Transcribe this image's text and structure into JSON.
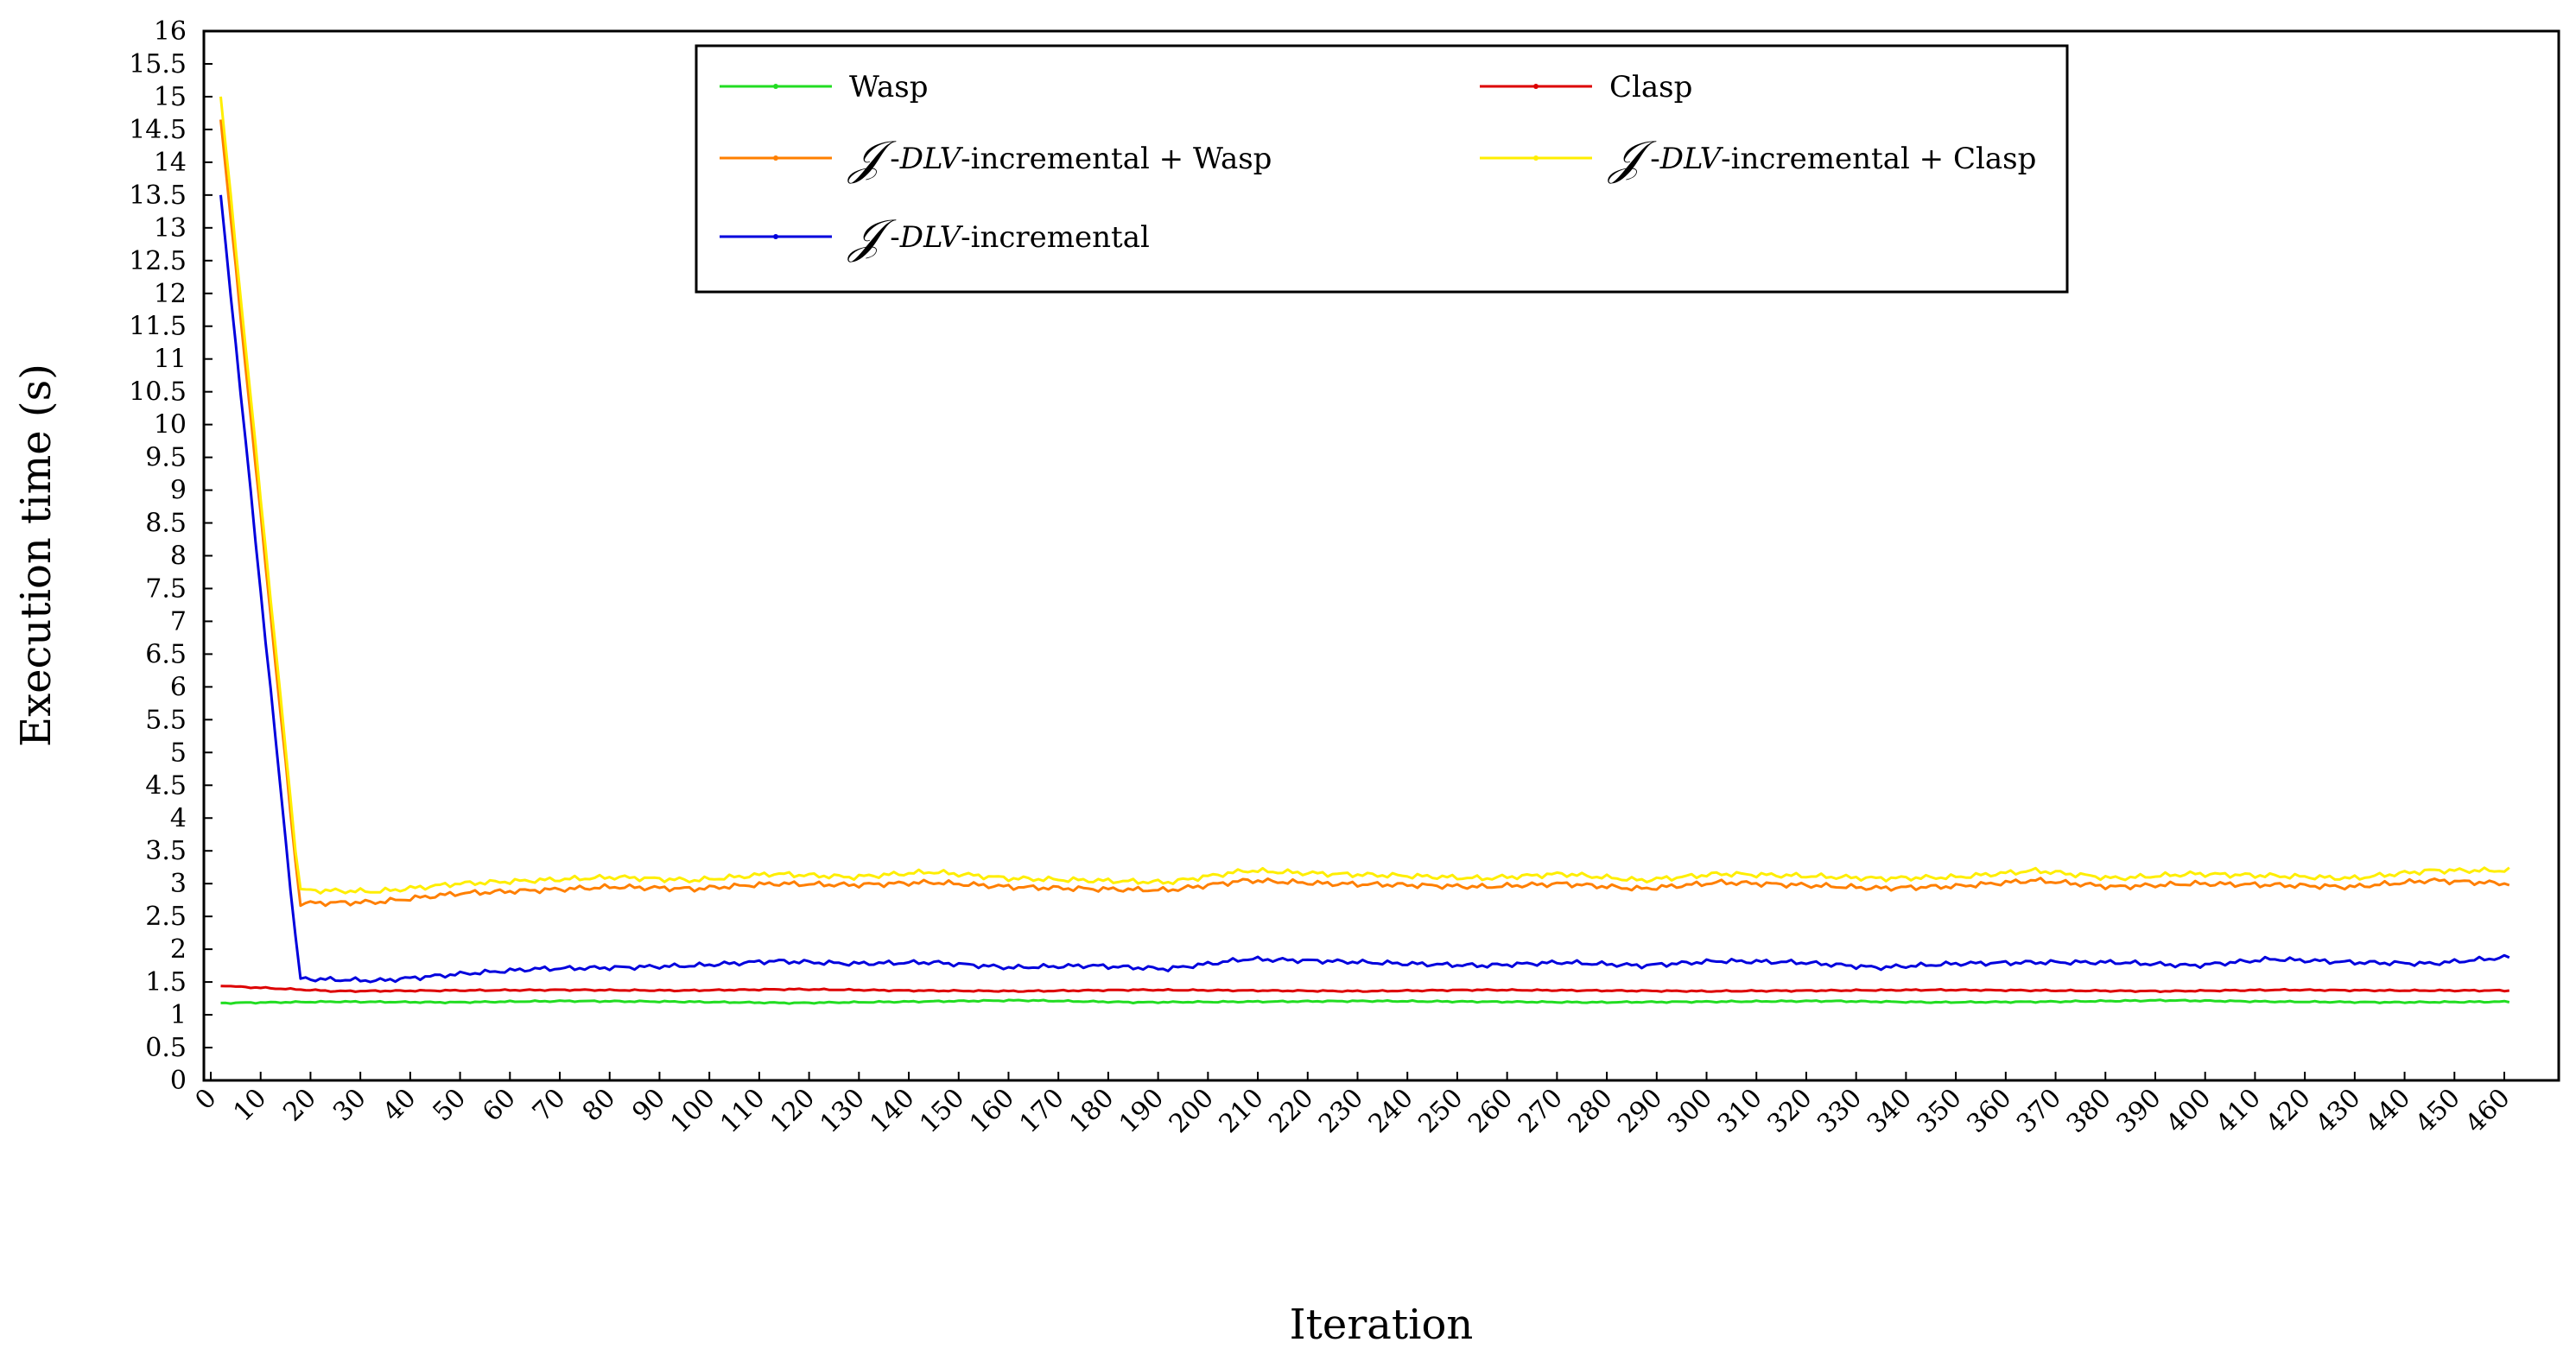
{
  "chart_data": {
    "type": "line",
    "xlabel": "Iteration",
    "ylabel": "Execution time (s)",
    "xlim": [
      0,
      471
    ],
    "ylim": [
      0,
      16
    ],
    "x_ticks": [
      0,
      10,
      20,
      30,
      40,
      50,
      60,
      70,
      80,
      90,
      100,
      110,
      120,
      130,
      140,
      150,
      160,
      170,
      180,
      190,
      200,
      210,
      220,
      230,
      240,
      250,
      260,
      270,
      280,
      290,
      300,
      310,
      320,
      330,
      340,
      350,
      360,
      370,
      380,
      390,
      400,
      410,
      420,
      430,
      440,
      450,
      460
    ],
    "y_ticks": [
      0,
      0.5,
      1,
      1.5,
      2,
      2.5,
      3,
      3.5,
      4,
      4.5,
      5,
      5.5,
      6,
      6.5,
      7,
      7.5,
      8,
      8.5,
      9,
      9.5,
      10,
      10.5,
      11,
      11.5,
      12,
      12.5,
      13,
      13.5,
      14,
      14.5,
      15,
      15.5,
      16
    ],
    "x_start": 2,
    "x_end": 461,
    "legend_position": "top-center",
    "grid": false,
    "series": [
      {
        "name": "Wasp",
        "color": "#22dd22",
        "values": [
          1.18,
          1.2,
          1.19,
          1.21,
          1.2,
          1.18,
          1.2,
          1.22,
          1.19,
          1.2,
          1.21,
          1.2,
          1.19,
          1.2,
          1.21,
          1.19,
          1.2,
          1.22,
          1.2,
          1.19,
          1.2
        ]
      },
      {
        "name": "Clasp",
        "color": "#dd0000",
        "values": [
          1.44,
          1.36,
          1.37,
          1.38,
          1.37,
          1.39,
          1.37,
          1.36,
          1.38,
          1.37,
          1.36,
          1.38,
          1.37,
          1.36,
          1.37,
          1.38,
          1.37,
          1.36,
          1.38,
          1.37,
          1.37
        ]
      },
      {
        "name": "-incremental + Wasp",
        "color": "#ff7f00",
        "values": [
          14.65,
          2.7,
          2.72,
          2.85,
          2.9,
          2.95,
          2.92,
          3.0,
          2.98,
          3.02,
          2.95,
          2.92,
          2.9,
          3.05,
          3.0,
          2.98,
          2.95,
          3.0,
          2.92,
          3.02,
          2.98,
          2.93,
          2.96,
          3.05,
          2.95,
          3.0,
          2.98,
          2.95,
          3.05,
          3.0
        ]
      },
      {
        "name": "-incremental + Clasp",
        "color": "#ffee00",
        "values": [
          15.0,
          2.9,
          2.88,
          3.0,
          3.05,
          3.1,
          3.05,
          3.15,
          3.1,
          3.18,
          3.08,
          3.05,
          3.02,
          3.2,
          3.15,
          3.12,
          3.08,
          3.15,
          3.05,
          3.15,
          3.12,
          3.08,
          3.1,
          3.2,
          3.08,
          3.15,
          3.12,
          3.08,
          3.2,
          3.2
        ]
      },
      {
        "name": "-incremental",
        "color": "#0000dd",
        "values": [
          13.5,
          1.55,
          1.52,
          1.62,
          1.7,
          1.72,
          1.75,
          1.82,
          1.78,
          1.8,
          1.72,
          1.75,
          1.7,
          1.85,
          1.82,
          1.78,
          1.75,
          1.8,
          1.75,
          1.82,
          1.8,
          1.72,
          1.78,
          1.8,
          1.8,
          1.75,
          1.85,
          1.8,
          1.78,
          1.88
        ]
      }
    ]
  },
  "legend": {
    "script_glyph": "𝒥",
    "dlv": "DLV",
    "items": [
      {
        "label": "Wasp",
        "script": false
      },
      {
        "label": "Clasp",
        "script": false
      },
      {
        "label": "-incremental + Wasp",
        "script": true
      },
      {
        "label": "-incremental + Clasp",
        "script": true
      },
      {
        "label": "-incremental",
        "script": true
      }
    ]
  }
}
